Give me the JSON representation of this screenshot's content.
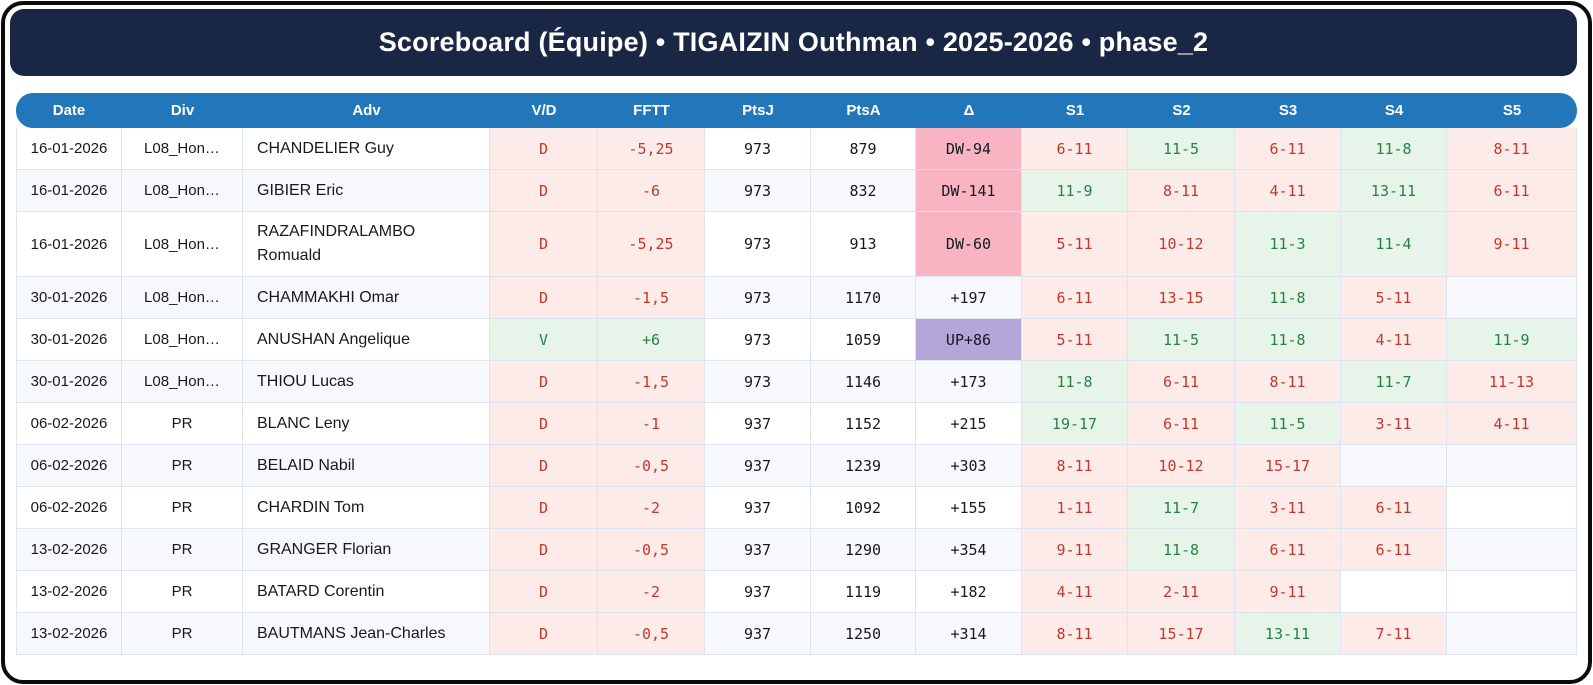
{
  "title": "Scoreboard (Équipe) • TIGAIZIN Outhman • 2025-2026 • phase_2",
  "columns": [
    "Date",
    "Div",
    "Adv",
    "V/D",
    "FFTT",
    "PtsJ",
    "PtsA",
    "Δ",
    "S1",
    "S2",
    "S3",
    "S4",
    "S5"
  ],
  "colors": {
    "title_bar": "#1a2744",
    "header_bg": "#2277bb",
    "win_text": "#2b8043",
    "win_bg": "#e6f4ea",
    "loss_text": "#c0392b",
    "loss_bg": "#fcebe9",
    "delta_down_bg": "#f9b4c4",
    "delta_up_bg": "#b5a6da",
    "stripe_bg": "#f6f8fc"
  },
  "rows": [
    {
      "date": "16-01-2026",
      "div": "L08_Hon…",
      "adv": "CHANDELIER Guy",
      "vd": "D",
      "fftt": "-5,25",
      "ptsj": "973",
      "ptsa": "879",
      "delta": {
        "text": "DW-94",
        "type": "down"
      },
      "sets": [
        {
          "score": "6-11",
          "win": false
        },
        {
          "score": "11-5",
          "win": true
        },
        {
          "score": "6-11",
          "win": false
        },
        {
          "score": "11-8",
          "win": true
        },
        {
          "score": "8-11",
          "win": false
        }
      ]
    },
    {
      "date": "16-01-2026",
      "div": "L08_Hon…",
      "adv": "GIBIER Eric",
      "vd": "D",
      "fftt": "-6",
      "ptsj": "973",
      "ptsa": "832",
      "delta": {
        "text": "DW-141",
        "type": "down"
      },
      "sets": [
        {
          "score": "11-9",
          "win": true
        },
        {
          "score": "8-11",
          "win": false
        },
        {
          "score": "4-11",
          "win": false
        },
        {
          "score": "13-11",
          "win": true
        },
        {
          "score": "6-11",
          "win": false
        }
      ]
    },
    {
      "date": "16-01-2026",
      "div": "L08_Hon…",
      "adv": "RAZAFINDRALAMBO Romuald",
      "vd": "D",
      "fftt": "-5,25",
      "ptsj": "973",
      "ptsa": "913",
      "delta": {
        "text": "DW-60",
        "type": "down"
      },
      "sets": [
        {
          "score": "5-11",
          "win": false
        },
        {
          "score": "10-12",
          "win": false
        },
        {
          "score": "11-3",
          "win": true
        },
        {
          "score": "11-4",
          "win": true
        },
        {
          "score": "9-11",
          "win": false
        }
      ]
    },
    {
      "date": "30-01-2026",
      "div": "L08_Hon…",
      "adv": "CHAMMAKHI Omar",
      "vd": "D",
      "fftt": "-1,5",
      "ptsj": "973",
      "ptsa": "1170",
      "delta": {
        "text": "+197",
        "type": "flat"
      },
      "sets": [
        {
          "score": "6-11",
          "win": false
        },
        {
          "score": "13-15",
          "win": false
        },
        {
          "score": "11-8",
          "win": true
        },
        {
          "score": "5-11",
          "win": false
        },
        null
      ]
    },
    {
      "date": "30-01-2026",
      "div": "L08_Hon…",
      "adv": "ANUSHAN Angelique",
      "vd": "V",
      "fftt": "+6",
      "ptsj": "973",
      "ptsa": "1059",
      "delta": {
        "text": "UP+86",
        "type": "up"
      },
      "sets": [
        {
          "score": "5-11",
          "win": false
        },
        {
          "score": "11-5",
          "win": true
        },
        {
          "score": "11-8",
          "win": true
        },
        {
          "score": "4-11",
          "win": false
        },
        {
          "score": "11-9",
          "win": true
        }
      ]
    },
    {
      "date": "30-01-2026",
      "div": "L08_Hon…",
      "adv": "THIOU Lucas",
      "vd": "D",
      "fftt": "-1,5",
      "ptsj": "973",
      "ptsa": "1146",
      "delta": {
        "text": "+173",
        "type": "flat"
      },
      "sets": [
        {
          "score": "11-8",
          "win": true
        },
        {
          "score": "6-11",
          "win": false
        },
        {
          "score": "8-11",
          "win": false
        },
        {
          "score": "11-7",
          "win": true
        },
        {
          "score": "11-13",
          "win": false
        }
      ]
    },
    {
      "date": "06-02-2026",
      "div": "PR",
      "adv": "BLANC Leny",
      "vd": "D",
      "fftt": "-1",
      "ptsj": "937",
      "ptsa": "1152",
      "delta": {
        "text": "+215",
        "type": "flat"
      },
      "sets": [
        {
          "score": "19-17",
          "win": true
        },
        {
          "score": "6-11",
          "win": false
        },
        {
          "score": "11-5",
          "win": true
        },
        {
          "score": "3-11",
          "win": false
        },
        {
          "score": "4-11",
          "win": false
        }
      ]
    },
    {
      "date": "06-02-2026",
      "div": "PR",
      "adv": "BELAID Nabil",
      "vd": "D",
      "fftt": "-0,5",
      "ptsj": "937",
      "ptsa": "1239",
      "delta": {
        "text": "+303",
        "type": "flat"
      },
      "sets": [
        {
          "score": "8-11",
          "win": false
        },
        {
          "score": "10-12",
          "win": false
        },
        {
          "score": "15-17",
          "win": false
        },
        null,
        null
      ]
    },
    {
      "date": "06-02-2026",
      "div": "PR",
      "adv": "CHARDIN Tom",
      "vd": "D",
      "fftt": "-2",
      "ptsj": "937",
      "ptsa": "1092",
      "delta": {
        "text": "+155",
        "type": "flat"
      },
      "sets": [
        {
          "score": "1-11",
          "win": false
        },
        {
          "score": "11-7",
          "win": true
        },
        {
          "score": "3-11",
          "win": false
        },
        {
          "score": "6-11",
          "win": false
        },
        null
      ]
    },
    {
      "date": "13-02-2026",
      "div": "PR",
      "adv": "GRANGER Florian",
      "vd": "D",
      "fftt": "-0,5",
      "ptsj": "937",
      "ptsa": "1290",
      "delta": {
        "text": "+354",
        "type": "flat"
      },
      "sets": [
        {
          "score": "9-11",
          "win": false
        },
        {
          "score": "11-8",
          "win": true
        },
        {
          "score": "6-11",
          "win": false
        },
        {
          "score": "6-11",
          "win": false
        },
        null
      ]
    },
    {
      "date": "13-02-2026",
      "div": "PR",
      "adv": "BATARD Corentin",
      "vd": "D",
      "fftt": "-2",
      "ptsj": "937",
      "ptsa": "1119",
      "delta": {
        "text": "+182",
        "type": "flat"
      },
      "sets": [
        {
          "score": "4-11",
          "win": false
        },
        {
          "score": "2-11",
          "win": false
        },
        {
          "score": "9-11",
          "win": false
        },
        null,
        null
      ]
    },
    {
      "date": "13-02-2026",
      "div": "PR",
      "adv": "BAUTMANS Jean-Charles",
      "vd": "D",
      "fftt": "-0,5",
      "ptsj": "937",
      "ptsa": "1250",
      "delta": {
        "text": "+314",
        "type": "flat"
      },
      "sets": [
        {
          "score": "8-11",
          "win": false
        },
        {
          "score": "15-17",
          "win": false
        },
        {
          "score": "13-11",
          "win": true
        },
        {
          "score": "7-11",
          "win": false
        },
        null
      ]
    }
  ]
}
